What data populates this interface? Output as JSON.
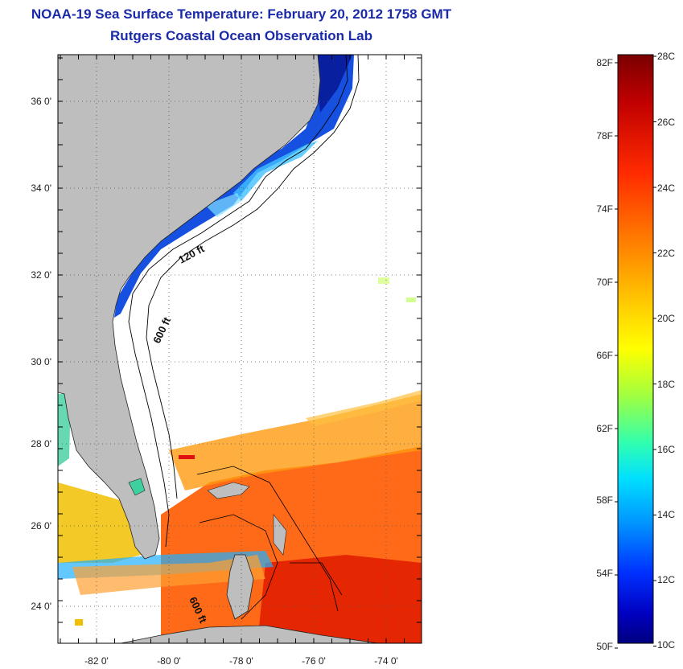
{
  "header": {
    "title": "NOAA-19 Sea Surface Temperature:  February 20, 2012 1758 GMT",
    "subtitle": "Rutgers Coastal Ocean Observation Lab"
  },
  "map": {
    "lat_labels": [
      "36 0'",
      "34 0'",
      "32 0'",
      "30 0'",
      "28 0'",
      "26 0'",
      "24 0'"
    ],
    "lon_labels": [
      "-82 0'",
      "-80 0'",
      "-78 0'",
      "-76 0'",
      "-74 0'"
    ],
    "contour_labels": [
      "120 ft",
      "600 ft",
      "600 ft"
    ]
  },
  "colorbar": {
    "fahrenheit": [
      "82F",
      "78F",
      "74F",
      "70F",
      "66F",
      "62F",
      "58F",
      "54F",
      "50F"
    ],
    "celsius": [
      "28C",
      "26C",
      "24C",
      "22C",
      "20C",
      "18C",
      "16C",
      "14C",
      "12C",
      "10C"
    ],
    "colors": [
      "#800000",
      "#c00000",
      "#ff2000",
      "#ff6000",
      "#ffa000",
      "#ffe000",
      "#d0ff30",
      "#80ff80",
      "#30ffd0",
      "#00d0ff",
      "#0080ff",
      "#0030ff",
      "#0000c0",
      "#000080"
    ]
  },
  "colors": {
    "land": "#bebebe",
    "title": "#1a2aa8"
  }
}
